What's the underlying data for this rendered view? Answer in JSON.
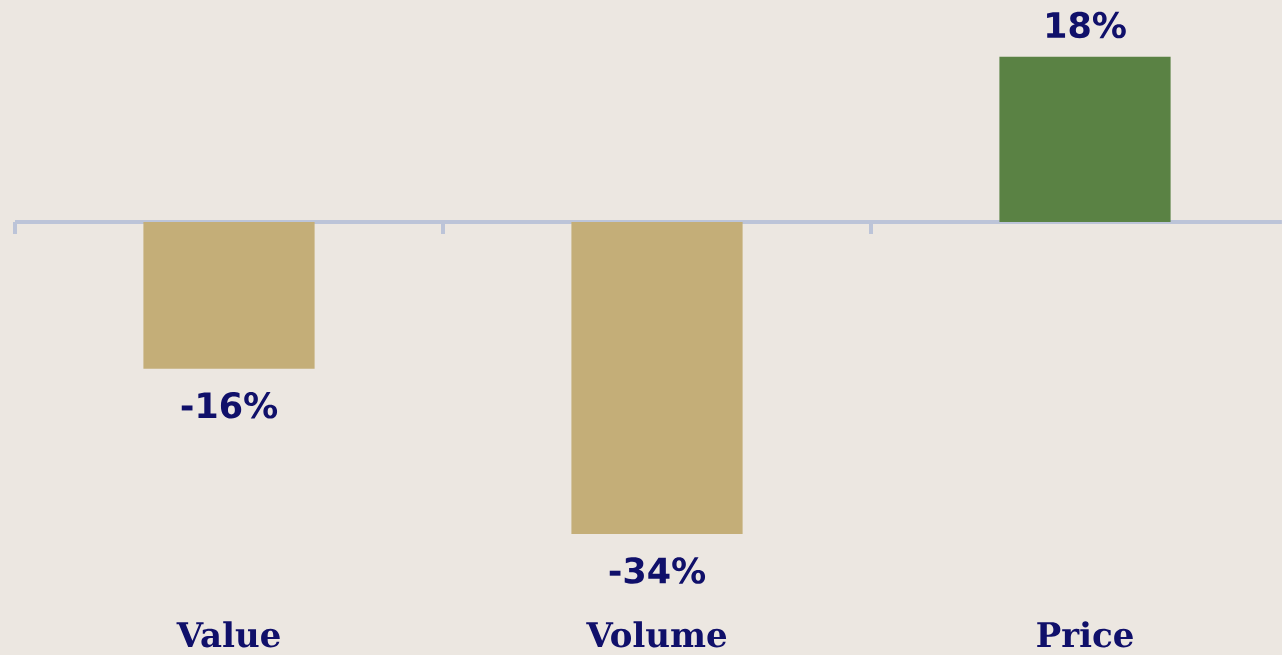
{
  "chart_data": {
    "type": "bar",
    "categories": [
      "Value",
      "Volume",
      "Price"
    ],
    "values": [
      -16,
      -34,
      18
    ],
    "colors": [
      "#c4ae78",
      "#c4ae78",
      "#5a8244"
    ],
    "value_labels": [
      "-16%",
      "-34%",
      "18%"
    ]
  }
}
